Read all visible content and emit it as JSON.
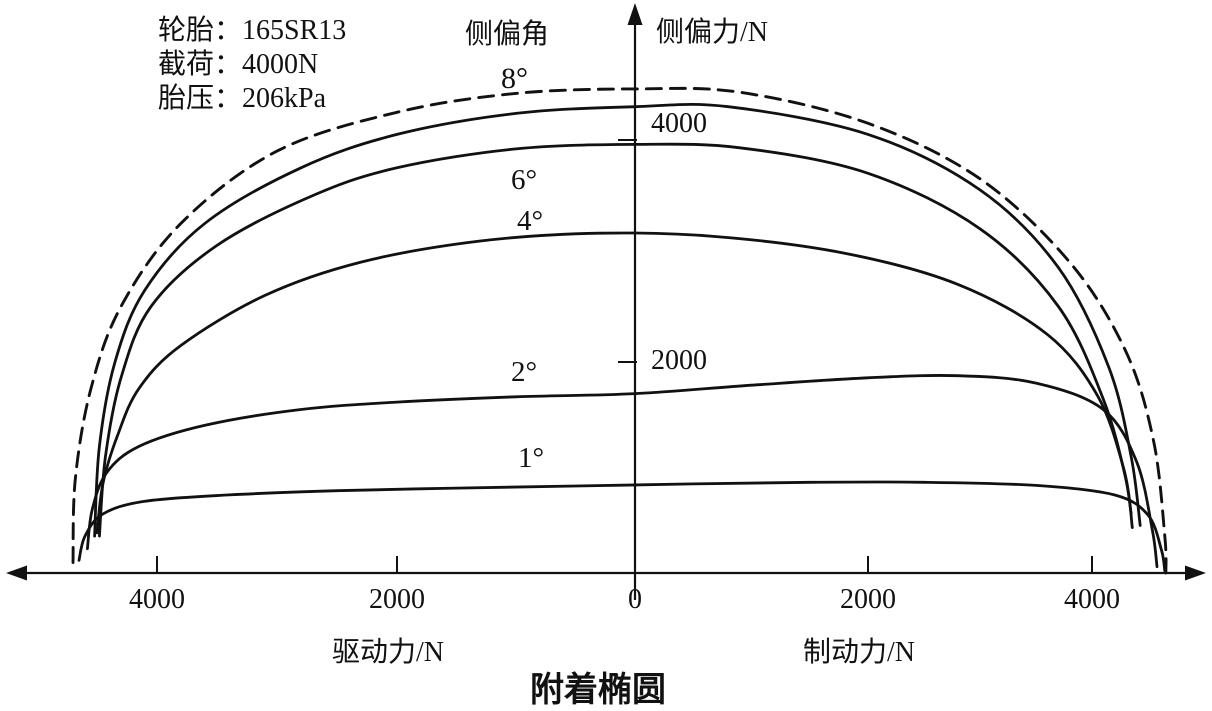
{
  "figure": {
    "info": {
      "lines": [
        "轮胎：165SR13",
        "截荷：4000N",
        "胎压：206kPa"
      ]
    },
    "slip_angle_header": "侧偏角",
    "y_axis_label": "侧偏力/N",
    "x_axis_left_label": "驱动力/N",
    "x_axis_right_label": "制动力/N",
    "caption": "附着椭圆",
    "curve_labels": {
      "deg8": "8°",
      "deg6": "6°",
      "deg4": "4°",
      "deg2": "2°",
      "deg1": "1°"
    },
    "x_tick_labels": [
      "4000",
      "2000",
      "0",
      "2000",
      "4000"
    ],
    "y_tick_labels": [
      "4000",
      "2000"
    ]
  },
  "chart_data": {
    "type": "line",
    "title": "附着椭圆",
    "subtitle": "轮胎 165SR13, 截荷 4000N, 胎压 206kPa",
    "ylabel": "侧偏力/N",
    "xlabel_left": "驱动力/N",
    "xlabel_right": "制动力/N",
    "x_convention": "x in N: negative = 驱动力 (driving force), positive = 制动力 (braking force)",
    "xlim": [
      -5000,
      5000
    ],
    "ylim": [
      0,
      4700
    ],
    "x_ticks": [
      -4000,
      -2000,
      0,
      2000,
      4000
    ],
    "y_ticks": [
      2000,
      4000
    ],
    "grid": false,
    "legend_position": "inline-curve-labels",
    "series": [
      {
        "name": "附着椭圆边界",
        "slip_angle_deg": null,
        "style": "dashed",
        "points": [
          [
            -4700,
            100
          ],
          [
            -4680,
            900
          ],
          [
            -4550,
            1750
          ],
          [
            -4300,
            2500
          ],
          [
            -3800,
            3250
          ],
          [
            -3000,
            3900
          ],
          [
            -2000,
            4250
          ],
          [
            -1000,
            4420
          ],
          [
            0,
            4460
          ],
          [
            900,
            4430
          ],
          [
            2000,
            4150
          ],
          [
            3000,
            3650
          ],
          [
            3800,
            2900
          ],
          [
            4300,
            2100
          ],
          [
            4550,
            1250
          ],
          [
            4650,
            350
          ],
          [
            4660,
            0
          ]
        ]
      },
      {
        "name": "侧偏角 8°",
        "slip_angle_deg": 8,
        "style": "solid",
        "points": [
          [
            -4520,
            350
          ],
          [
            -4480,
            1200
          ],
          [
            -4350,
            2000
          ],
          [
            -4100,
            2650
          ],
          [
            -3600,
            3250
          ],
          [
            -2800,
            3750
          ],
          [
            -2000,
            4050
          ],
          [
            -1000,
            4240
          ],
          [
            0,
            4300
          ],
          [
            800,
            4300
          ],
          [
            2000,
            4050
          ],
          [
            3000,
            3550
          ],
          [
            3700,
            2850
          ],
          [
            4150,
            1950
          ],
          [
            4350,
            1100
          ],
          [
            4430,
            450
          ]
        ]
      },
      {
        "name": "侧偏角 6°",
        "slip_angle_deg": 6,
        "style": "solid",
        "points": [
          [
            -4480,
            350
          ],
          [
            -4430,
            1100
          ],
          [
            -4300,
            1850
          ],
          [
            -4050,
            2500
          ],
          [
            -3500,
            3050
          ],
          [
            -2700,
            3500
          ],
          [
            -2000,
            3750
          ],
          [
            -1000,
            3920
          ],
          [
            0,
            3960
          ],
          [
            900,
            3930
          ],
          [
            2000,
            3700
          ],
          [
            3000,
            3200
          ],
          [
            3700,
            2500
          ],
          [
            4100,
            1650
          ],
          [
            4300,
            900
          ],
          [
            4360,
            430
          ]
        ]
      },
      {
        "name": "侧偏角 4°",
        "slip_angle_deg": 4,
        "style": "solid",
        "points": [
          [
            -4500,
            380
          ],
          [
            -4450,
            850
          ],
          [
            -4330,
            1300
          ],
          [
            -4150,
            1750
          ],
          [
            -3800,
            2150
          ],
          [
            -3100,
            2600
          ],
          [
            -2300,
            2900
          ],
          [
            -1300,
            3090
          ],
          [
            -300,
            3160
          ],
          [
            700,
            3130
          ],
          [
            1800,
            2980
          ],
          [
            2800,
            2700
          ],
          [
            3600,
            2250
          ],
          [
            4050,
            1680
          ],
          [
            4280,
            1000
          ],
          [
            4350,
            560
          ]
        ]
      },
      {
        "name": "侧偏角 2°",
        "slip_angle_deg": 2,
        "style": "solid",
        "points": [
          [
            -4580,
            230
          ],
          [
            -4540,
            600
          ],
          [
            -4420,
            950
          ],
          [
            -4150,
            1200
          ],
          [
            -3600,
            1400
          ],
          [
            -2800,
            1550
          ],
          [
            -2000,
            1620
          ],
          [
            -1000,
            1670
          ],
          [
            0,
            1700
          ],
          [
            1000,
            1780
          ],
          [
            2000,
            1850
          ],
          [
            2800,
            1870
          ],
          [
            3500,
            1800
          ],
          [
            4100,
            1550
          ],
          [
            4400,
            1050
          ],
          [
            4540,
            400
          ],
          [
            4580,
            60
          ]
        ]
      },
      {
        "name": "侧偏角 1°",
        "slip_angle_deg": 1,
        "style": "solid",
        "points": [
          [
            -4650,
            120
          ],
          [
            -4600,
            350
          ],
          [
            -4450,
            560
          ],
          [
            -4100,
            680
          ],
          [
            -3400,
            740
          ],
          [
            -2500,
            780
          ],
          [
            -1500,
            805
          ],
          [
            -500,
            825
          ],
          [
            500,
            845
          ],
          [
            1500,
            860
          ],
          [
            2500,
            860
          ],
          [
            3500,
            830
          ],
          [
            4200,
            740
          ],
          [
            4500,
            550
          ],
          [
            4620,
            220
          ],
          [
            4650,
            20
          ]
        ]
      }
    ]
  }
}
